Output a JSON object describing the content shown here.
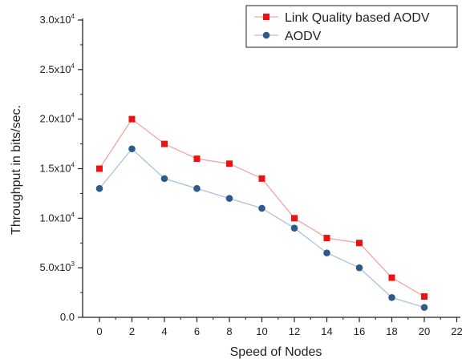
{
  "chart_data": {
    "type": "line",
    "xlabel": "Speed of Nodes",
    "ylabel": "Throughput in bits/sec.",
    "xlim": [
      -1,
      22
    ],
    "ylim": [
      0,
      30000
    ],
    "x_ticks": [
      0,
      2,
      4,
      6,
      8,
      10,
      12,
      14,
      16,
      18,
      20,
      22
    ],
    "y_ticks": [
      {
        "value": 0,
        "mantissa": "0.0",
        "exp": ""
      },
      {
        "value": 5000,
        "mantissa": "5.0x10",
        "exp": "3"
      },
      {
        "value": 10000,
        "mantissa": "1.0x10",
        "exp": "4"
      },
      {
        "value": 15000,
        "mantissa": "1.5x10",
        "exp": "4"
      },
      {
        "value": 20000,
        "mantissa": "2.0x10",
        "exp": "4"
      },
      {
        "value": 25000,
        "mantissa": "2.5x10",
        "exp": "4"
      },
      {
        "value": 30000,
        "mantissa": "3.0x10",
        "exp": "4"
      }
    ],
    "x": [
      0,
      2,
      4,
      6,
      8,
      10,
      12,
      14,
      16,
      18,
      20
    ],
    "series": [
      {
        "name": "Link Quality based AODV",
        "marker": "square",
        "marker_color": "#ee1111",
        "line_color": "#f5a3a3",
        "values": [
          15000,
          20000,
          17500,
          16000,
          15500,
          14000,
          10000,
          8000,
          7500,
          4000,
          2100
        ]
      },
      {
        "name": "AODV",
        "marker": "circle",
        "marker_color": "#2e5a8a",
        "line_color": "#a9c3de",
        "values": [
          13000,
          17000,
          14000,
          13000,
          12000,
          11000,
          9000,
          6500,
          5000,
          2000,
          1000
        ]
      }
    ],
    "legend_position": "top-right",
    "grid": false
  }
}
